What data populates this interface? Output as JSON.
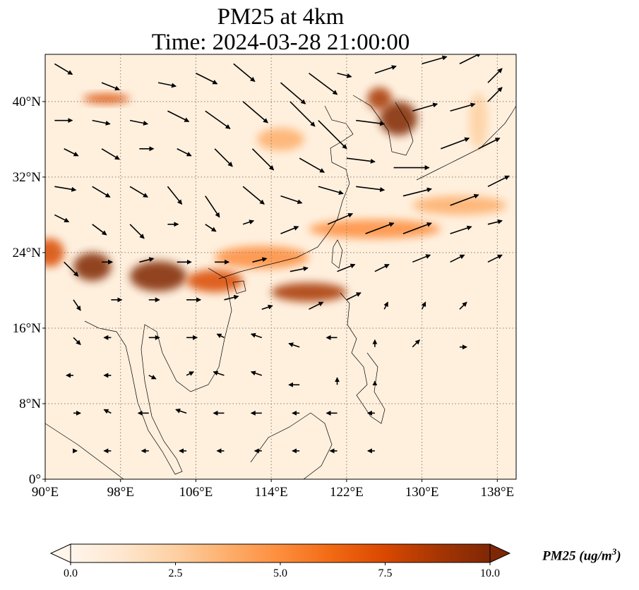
{
  "title": {
    "line1": "PM25 at 4km",
    "line2": "Time: 2024-03-28 21:00:00"
  },
  "map": {
    "extent": {
      "lon_min": 90,
      "lon_max": 140,
      "lat_min": 0,
      "lat_max": 45
    },
    "lon_ticks": [
      {
        "value": 90,
        "label": "90°E"
      },
      {
        "value": 98,
        "label": "98°E"
      },
      {
        "value": 106,
        "label": "106°E"
      },
      {
        "value": 114,
        "label": "114°E"
      },
      {
        "value": 122,
        "label": "122°E"
      },
      {
        "value": 130,
        "label": "130°E"
      },
      {
        "value": 138,
        "label": "138°E"
      }
    ],
    "lat_ticks": [
      {
        "value": 0,
        "label": "0°"
      },
      {
        "value": 8,
        "label": "8°N"
      },
      {
        "value": 16,
        "label": "16°N"
      },
      {
        "value": 24,
        "label": "24°N"
      },
      {
        "value": 32,
        "label": "32°N"
      },
      {
        "value": 40,
        "label": "40°N"
      }
    ],
    "gridlines": true,
    "plumes": [
      {
        "lon": 102,
        "lat": 21.5,
        "rlon": 3.0,
        "rlat": 1.6,
        "value": 10
      },
      {
        "lon": 95,
        "lat": 22.5,
        "rlon": 2.0,
        "rlat": 1.5,
        "value": 10
      },
      {
        "lon": 108,
        "lat": 21.0,
        "rlon": 3.0,
        "rlat": 1.2,
        "value": 8
      },
      {
        "lon": 118,
        "lat": 19.8,
        "rlon": 4.0,
        "rlat": 1.0,
        "value": 9
      },
      {
        "lon": 125,
        "lat": 26.5,
        "rlon": 7.0,
        "rlat": 1.0,
        "value": 5
      },
      {
        "lon": 134,
        "lat": 29.0,
        "rlon": 5.0,
        "rlat": 1.0,
        "value": 4
      },
      {
        "lon": 127.5,
        "lat": 38.2,
        "rlon": 2.0,
        "rlat": 1.8,
        "value": 10
      },
      {
        "lon": 125.5,
        "lat": 40.3,
        "rlon": 1.3,
        "rlat": 1.2,
        "value": 9
      },
      {
        "lon": 96.5,
        "lat": 40.3,
        "rlon": 2.5,
        "rlat": 0.5,
        "value": 8
      },
      {
        "lon": 115,
        "lat": 36.0,
        "rlon": 2.5,
        "rlat": 1.2,
        "value": 4
      },
      {
        "lon": 90.5,
        "lat": 24.0,
        "rlon": 1.5,
        "rlat": 1.5,
        "value": 7
      },
      {
        "lon": 113,
        "lat": 23.5,
        "rlon": 5.0,
        "rlat": 1.2,
        "value": 5
      },
      {
        "lon": 136,
        "lat": 38.0,
        "rlon": 1.0,
        "rlat": 3.0,
        "value": 3
      }
    ],
    "wind_vectors": [
      {
        "lon": 91,
        "lat": 44,
        "u": 2.5,
        "v": -1.5
      },
      {
        "lon": 96,
        "lat": 42,
        "u": 2.5,
        "v": -1
      },
      {
        "lon": 102,
        "lat": 42,
        "u": 2.5,
        "v": -0.5
      },
      {
        "lon": 106,
        "lat": 43,
        "u": 3,
        "v": -1.5
      },
      {
        "lon": 110,
        "lat": 44,
        "u": 3,
        "v": -2.5
      },
      {
        "lon": 115,
        "lat": 42,
        "u": 3.5,
        "v": -3
      },
      {
        "lon": 118,
        "lat": 43,
        "u": 4,
        "v": -3
      },
      {
        "lon": 121,
        "lat": 43,
        "u": 2,
        "v": -0.5
      },
      {
        "lon": 125,
        "lat": 43,
        "u": 3,
        "v": 1
      },
      {
        "lon": 130,
        "lat": 44,
        "u": 3.5,
        "v": 1
      },
      {
        "lon": 134,
        "lat": 44,
        "u": 3,
        "v": 1.5
      },
      {
        "lon": 137,
        "lat": 42,
        "u": 2,
        "v": 2
      },
      {
        "lon": 91,
        "lat": 38,
        "u": 2.5,
        "v": 0
      },
      {
        "lon": 95,
        "lat": 38,
        "u": 2.5,
        "v": -0.5
      },
      {
        "lon": 99,
        "lat": 38,
        "u": 2.5,
        "v": -0.5
      },
      {
        "lon": 103,
        "lat": 39,
        "u": 3,
        "v": -1.5
      },
      {
        "lon": 107,
        "lat": 39,
        "u": 3.5,
        "v": -2.5
      },
      {
        "lon": 111,
        "lat": 40,
        "u": 3.5,
        "v": -3
      },
      {
        "lon": 116,
        "lat": 40,
        "u": 3.5,
        "v": -3.5
      },
      {
        "lon": 119,
        "lat": 38,
        "u": 4,
        "v": -4
      },
      {
        "lon": 123,
        "lat": 38,
        "u": 4,
        "v": -0.5
      },
      {
        "lon": 129,
        "lat": 39,
        "u": 3.5,
        "v": 1
      },
      {
        "lon": 133,
        "lat": 39,
        "u": 3.5,
        "v": 1
      },
      {
        "lon": 137,
        "lat": 40,
        "u": 2,
        "v": 2
      },
      {
        "lon": 92,
        "lat": 35,
        "u": 2,
        "v": -1
      },
      {
        "lon": 96,
        "lat": 35,
        "u": 2.5,
        "v": -1.5
      },
      {
        "lon": 100,
        "lat": 35,
        "u": 2,
        "v": 0
      },
      {
        "lon": 104,
        "lat": 35,
        "u": 2,
        "v": -1
      },
      {
        "lon": 108,
        "lat": 35,
        "u": 2.5,
        "v": -2.5
      },
      {
        "lon": 112,
        "lat": 35,
        "u": 3,
        "v": -3
      },
      {
        "lon": 117,
        "lat": 34,
        "u": 3.5,
        "v": -2
      },
      {
        "lon": 122,
        "lat": 34,
        "u": 4,
        "v": -0.5
      },
      {
        "lon": 127,
        "lat": 33,
        "u": 5,
        "v": 0
      },
      {
        "lon": 132,
        "lat": 35,
        "u": 4,
        "v": 1.5
      },
      {
        "lon": 136,
        "lat": 35,
        "u": 3,
        "v": 1.5
      },
      {
        "lon": 91,
        "lat": 31,
        "u": 3,
        "v": -0.5
      },
      {
        "lon": 95,
        "lat": 31,
        "u": 2.5,
        "v": -1.5
      },
      {
        "lon": 99,
        "lat": 31,
        "u": 2.5,
        "v": -1.5
      },
      {
        "lon": 103,
        "lat": 31,
        "u": 2,
        "v": -2.5
      },
      {
        "lon": 107,
        "lat": 30,
        "u": 2,
        "v": -3
      },
      {
        "lon": 111,
        "lat": 31,
        "u": 3,
        "v": -2.5
      },
      {
        "lon": 115,
        "lat": 30,
        "u": 3,
        "v": -1
      },
      {
        "lon": 119,
        "lat": 31,
        "u": 3.5,
        "v": -1
      },
      {
        "lon": 123,
        "lat": 31,
        "u": 4,
        "v": -0.5
      },
      {
        "lon": 128,
        "lat": 30,
        "u": 4,
        "v": 1
      },
      {
        "lon": 133,
        "lat": 29,
        "u": 4,
        "v": 1.5
      },
      {
        "lon": 137,
        "lat": 31,
        "u": 3,
        "v": 1.5
      },
      {
        "lon": 91,
        "lat": 28,
        "u": 2,
        "v": -1
      },
      {
        "lon": 95,
        "lat": 27,
        "u": 2,
        "v": -1.5
      },
      {
        "lon": 99,
        "lat": 27,
        "u": 2,
        "v": -2
      },
      {
        "lon": 103,
        "lat": 27,
        "u": 1.5,
        "v": 0
      },
      {
        "lon": 107,
        "lat": 27,
        "u": 1.5,
        "v": -1
      },
      {
        "lon": 111,
        "lat": 27,
        "u": 1.5,
        "v": 0.5
      },
      {
        "lon": 115,
        "lat": 26,
        "u": 2.5,
        "v": 1
      },
      {
        "lon": 120,
        "lat": 27,
        "u": 3.5,
        "v": 1.5
      },
      {
        "lon": 124,
        "lat": 26,
        "u": 4,
        "v": 1.5
      },
      {
        "lon": 128,
        "lat": 26,
        "u": 4,
        "v": 1.5
      },
      {
        "lon": 133,
        "lat": 26,
        "u": 3,
        "v": 1
      },
      {
        "lon": 137,
        "lat": 27,
        "u": 2,
        "v": 0.5
      },
      {
        "lon": 92,
        "lat": 23,
        "u": 2,
        "v": -2
      },
      {
        "lon": 96,
        "lat": 23,
        "u": 1.5,
        "v": 0
      },
      {
        "lon": 100,
        "lat": 23,
        "u": 2,
        "v": 0.5
      },
      {
        "lon": 104,
        "lat": 23,
        "u": 2,
        "v": 0
      },
      {
        "lon": 108,
        "lat": 23,
        "u": 2,
        "v": 0
      },
      {
        "lon": 112,
        "lat": 23,
        "u": 2,
        "v": 0.5
      },
      {
        "lon": 116,
        "lat": 22,
        "u": 2.5,
        "v": 0.5
      },
      {
        "lon": 121,
        "lat": 22,
        "u": 2.5,
        "v": 1
      },
      {
        "lon": 125,
        "lat": 22,
        "u": 2,
        "v": 1
      },
      {
        "lon": 129,
        "lat": 23,
        "u": 2.5,
        "v": 1
      },
      {
        "lon": 133,
        "lat": 23,
        "u": 2,
        "v": 1
      },
      {
        "lon": 137,
        "lat": 23,
        "u": 2,
        "v": 1
      },
      {
        "lon": 93,
        "lat": 19,
        "u": 1,
        "v": -1.5
      },
      {
        "lon": 97,
        "lat": 19,
        "u": 1.5,
        "v": 0
      },
      {
        "lon": 101,
        "lat": 19,
        "u": 1.5,
        "v": 0
      },
      {
        "lon": 105,
        "lat": 19,
        "u": 2,
        "v": 0
      },
      {
        "lon": 109,
        "lat": 19,
        "u": 2,
        "v": 0.5
      },
      {
        "lon": 113,
        "lat": 18,
        "u": 1.5,
        "v": 0.5
      },
      {
        "lon": 118,
        "lat": 18,
        "u": 2,
        "v": 1
      },
      {
        "lon": 122,
        "lat": 19,
        "u": 2,
        "v": 1
      },
      {
        "lon": 126,
        "lat": 18,
        "u": 0.5,
        "v": 1
      },
      {
        "lon": 130,
        "lat": 18,
        "u": 0.5,
        "v": 1
      },
      {
        "lon": 134,
        "lat": 18,
        "u": 1,
        "v": 1
      },
      {
        "lon": 93,
        "lat": 15,
        "u": 1,
        "v": -1
      },
      {
        "lon": 97,
        "lat": 15,
        "u": -1,
        "v": 0
      },
      {
        "lon": 101,
        "lat": 15,
        "u": 1.5,
        "v": 0
      },
      {
        "lon": 105,
        "lat": 15,
        "u": 1.5,
        "v": 0
      },
      {
        "lon": 109,
        "lat": 15,
        "u": -1,
        "v": 0.5
      },
      {
        "lon": 113,
        "lat": 15,
        "u": -1.5,
        "v": 0.5
      },
      {
        "lon": 117,
        "lat": 14,
        "u": -1.5,
        "v": 0.5
      },
      {
        "lon": 121,
        "lat": 15,
        "u": -1.5,
        "v": 0
      },
      {
        "lon": 125,
        "lat": 14,
        "u": 0,
        "v": 1
      },
      {
        "lon": 129,
        "lat": 14,
        "u": 1,
        "v": 1
      },
      {
        "lon": 134,
        "lat": 14,
        "u": 1,
        "v": 0
      },
      {
        "lon": 93,
        "lat": 11,
        "u": -1,
        "v": 0
      },
      {
        "lon": 97,
        "lat": 11,
        "u": -1,
        "v": 0
      },
      {
        "lon": 101,
        "lat": 11,
        "u": 1,
        "v": -0.5
      },
      {
        "lon": 105,
        "lat": 11,
        "u": 1,
        "v": 0.5
      },
      {
        "lon": 109,
        "lat": 11,
        "u": -1.5,
        "v": 0.5
      },
      {
        "lon": 113,
        "lat": 11,
        "u": -1.5,
        "v": 0.5
      },
      {
        "lon": 117,
        "lat": 10,
        "u": -1.5,
        "v": 0
      },
      {
        "lon": 121,
        "lat": 10,
        "u": 0,
        "v": 1
      },
      {
        "lon": 125,
        "lat": 10,
        "u": 0,
        "v": 0.5
      },
      {
        "lon": 93,
        "lat": 7,
        "u": 1,
        "v": 0
      },
      {
        "lon": 97,
        "lat": 7,
        "u": -1,
        "v": 0.5
      },
      {
        "lon": 101,
        "lat": 7,
        "u": -1.5,
        "v": 0
      },
      {
        "lon": 105,
        "lat": 7,
        "u": -1.5,
        "v": 0.5
      },
      {
        "lon": 109,
        "lat": 7,
        "u": -1.5,
        "v": 0
      },
      {
        "lon": 113,
        "lat": 7,
        "u": -1.5,
        "v": 0
      },
      {
        "lon": 117,
        "lat": 7,
        "u": -1,
        "v": 0
      },
      {
        "lon": 121,
        "lat": 7,
        "u": -1.5,
        "v": 0
      },
      {
        "lon": 125,
        "lat": 7,
        "u": -1,
        "v": 0
      },
      {
        "lon": 93,
        "lat": 3,
        "u": 0.5,
        "v": 0
      },
      {
        "lon": 97,
        "lat": 3,
        "u": -1,
        "v": 0
      },
      {
        "lon": 101,
        "lat": 3,
        "u": -1,
        "v": 0
      },
      {
        "lon": 105,
        "lat": 3,
        "u": -1,
        "v": 0
      },
      {
        "lon": 109,
        "lat": 3,
        "u": -1,
        "v": 0
      },
      {
        "lon": 113,
        "lat": 3,
        "u": -1,
        "v": 0
      },
      {
        "lon": 117,
        "lat": 3,
        "u": -1,
        "v": 0
      },
      {
        "lon": 121,
        "lat": 3,
        "u": -1,
        "v": 0
      },
      {
        "lon": 125,
        "lat": 3,
        "u": -1,
        "v": 0
      }
    ]
  },
  "colorbar": {
    "min": 0,
    "max": 10,
    "ticks": [
      {
        "value": 0,
        "label": "0.0"
      },
      {
        "value": 2.5,
        "label": "2.5"
      },
      {
        "value": 5,
        "label": "5.0"
      },
      {
        "value": 7.5,
        "label": "7.5"
      },
      {
        "value": 10,
        "label": "10.0"
      }
    ],
    "label": "PM25 (ug/m",
    "label_sup": "3",
    "label_close": ")",
    "colors": [
      "#fff5eb",
      "#fee6ce",
      "#fdd0a2",
      "#fdae6b",
      "#fd8d3c",
      "#f16913",
      "#d94801",
      "#a63603",
      "#7f2704"
    ]
  }
}
